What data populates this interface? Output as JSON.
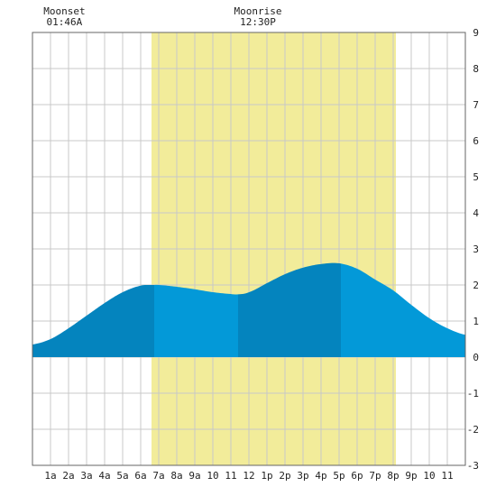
{
  "chart_data": {
    "type": "area",
    "title": "",
    "xlabel": "",
    "ylabel": "",
    "xlim": [
      0,
      24
    ],
    "ylim": [
      -3,
      9
    ],
    "grid": true,
    "x_unit": "hour of day",
    "x_tick_labels": [
      "1a",
      "2a",
      "3a",
      "4a",
      "5a",
      "6a",
      "7a",
      "8a",
      "9a",
      "10",
      "11",
      "12",
      "1p",
      "2p",
      "3p",
      "4p",
      "5p",
      "6p",
      "7p",
      "8p",
      "9p",
      "10",
      "11"
    ],
    "y_ticks": [
      9,
      8,
      7,
      6,
      5,
      4,
      3,
      2,
      1,
      0,
      -1,
      -2,
      -3
    ],
    "y_axis_side": "right",
    "daylight_band": {
      "start_hour": 6.6,
      "end_hour": 20.15,
      "color": "#f2ec9a"
    },
    "annotations": [
      {
        "label": "Moonset",
        "time": "01:46A",
        "hour": 1.77
      },
      {
        "label": "Moonrise",
        "time": "12:30P",
        "hour": 12.5
      }
    ],
    "tide_series": {
      "x": [
        0,
        1,
        2,
        3,
        4,
        5,
        6,
        6.75,
        7,
        8,
        9,
        10,
        11,
        11.4,
        12,
        13,
        14,
        15,
        16,
        17,
        18,
        19,
        20,
        21,
        22,
        23,
        24
      ],
      "y": [
        0.35,
        0.5,
        0.8,
        1.15,
        1.5,
        1.8,
        1.98,
        2.0,
        2.0,
        1.95,
        1.88,
        1.8,
        1.75,
        1.74,
        1.8,
        2.05,
        2.3,
        2.48,
        2.58,
        2.6,
        2.45,
        2.15,
        1.85,
        1.45,
        1.08,
        0.8,
        0.62
      ]
    },
    "turning_points_hours": [
      6.75,
      11.4,
      17.1
    ],
    "colors": {
      "dark_fill": "#0484be",
      "light_fill": "#0399d8",
      "grid": "#c8c8c8",
      "daylight": "#f2ec9a"
    }
  }
}
